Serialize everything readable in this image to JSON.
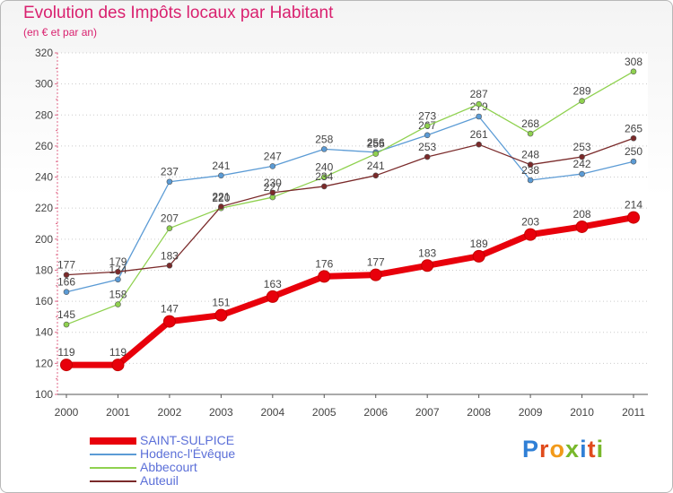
{
  "header": {
    "title": "Evolution des Impôts locaux par Habitant",
    "subtitle": "(en € et par an)"
  },
  "chart_data": {
    "type": "line",
    "title": "Evolution des Impôts locaux par Habitant",
    "subtitle": "(en € et par an)",
    "xlabel": "",
    "ylabel": "",
    "x": [
      "2000",
      "2001",
      "2002",
      "2003",
      "2004",
      "2005",
      "2006",
      "2007",
      "2008",
      "2009",
      "2010",
      "2011"
    ],
    "ylim": [
      100,
      320
    ],
    "yticks": [
      100,
      120,
      140,
      160,
      180,
      200,
      220,
      240,
      260,
      280,
      300,
      320
    ],
    "grid": "horizontal dotted",
    "legend_position": "bottom-left",
    "series": [
      {
        "name": "SAINT-SULPICE",
        "color": "#e8000b",
        "emphasis": true,
        "values": [
          119,
          119,
          147,
          151,
          163,
          176,
          177,
          183,
          189,
          203,
          208,
          214
        ]
      },
      {
        "name": "Hodenc-l'Évêque",
        "color": "#5b9bd5",
        "values": [
          166,
          174,
          237,
          241,
          247,
          258,
          256,
          267,
          279,
          238,
          242,
          250
        ]
      },
      {
        "name": "Abbecourt",
        "color": "#8fd14f",
        "values": [
          145,
          158,
          207,
          220,
          227,
          240,
          255,
          273,
          287,
          268,
          289,
          308
        ]
      },
      {
        "name": "Auteuil",
        "color": "#7a2a2a",
        "values": [
          177,
          179,
          183,
          221,
          230,
          234,
          241,
          253,
          261,
          248,
          253,
          265
        ]
      }
    ]
  },
  "logo": {
    "letters": [
      "P",
      "r",
      "o",
      "x",
      "i",
      "t",
      "i"
    ],
    "colors": [
      "#2f7fd6",
      "#e04b1c",
      "#f29a1a",
      "#79b82b",
      "#2f7fd6",
      "#e04b1c",
      "#79b82b"
    ]
  }
}
